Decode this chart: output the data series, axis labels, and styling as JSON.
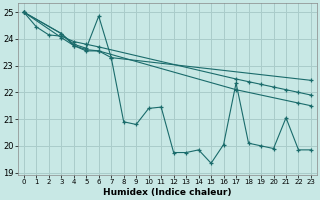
{
  "xlabel": "Humidex (Indice chaleur)",
  "xlim": [
    -0.5,
    23.5
  ],
  "ylim": [
    18.9,
    25.35
  ],
  "yticks": [
    19,
    20,
    21,
    22,
    23,
    24,
    25
  ],
  "xticks": [
    0,
    1,
    2,
    3,
    4,
    5,
    6,
    7,
    8,
    9,
    10,
    11,
    12,
    13,
    14,
    15,
    16,
    17,
    18,
    19,
    20,
    21,
    22,
    23
  ],
  "bg_color": "#c8e8e5",
  "grid_color": "#aaccca",
  "line_color": "#1a6b6b",
  "series": [
    {
      "x": [
        0,
        1,
        2,
        3,
        4,
        5,
        6,
        17,
        18,
        19,
        20,
        21,
        22,
        23
      ],
      "y": [
        25.0,
        24.45,
        24.15,
        24.1,
        23.9,
        23.8,
        23.7,
        22.5,
        22.4,
        22.3,
        22.2,
        22.1,
        22.0,
        21.9
      ]
    },
    {
      "x": [
        0,
        3,
        4,
        5,
        6,
        17,
        22,
        23
      ],
      "y": [
        25.0,
        24.05,
        23.75,
        23.6,
        23.55,
        22.1,
        21.6,
        21.5
      ]
    },
    {
      "x": [
        0,
        3,
        4,
        5,
        6,
        7,
        23
      ],
      "y": [
        25.0,
        24.2,
        23.8,
        23.65,
        24.85,
        23.3,
        22.45
      ]
    },
    {
      "x": [
        0,
        3,
        4,
        5,
        6,
        7,
        8,
        9,
        10,
        11,
        12,
        13,
        14,
        15,
        16,
        17,
        18,
        19,
        20,
        21,
        22,
        23
      ],
      "y": [
        25.0,
        24.2,
        23.75,
        23.55,
        23.55,
        23.3,
        20.9,
        20.8,
        21.4,
        21.45,
        19.75,
        19.75,
        19.85,
        19.35,
        20.05,
        22.35,
        20.1,
        20.0,
        19.9,
        21.05,
        19.85,
        19.85
      ]
    }
  ]
}
